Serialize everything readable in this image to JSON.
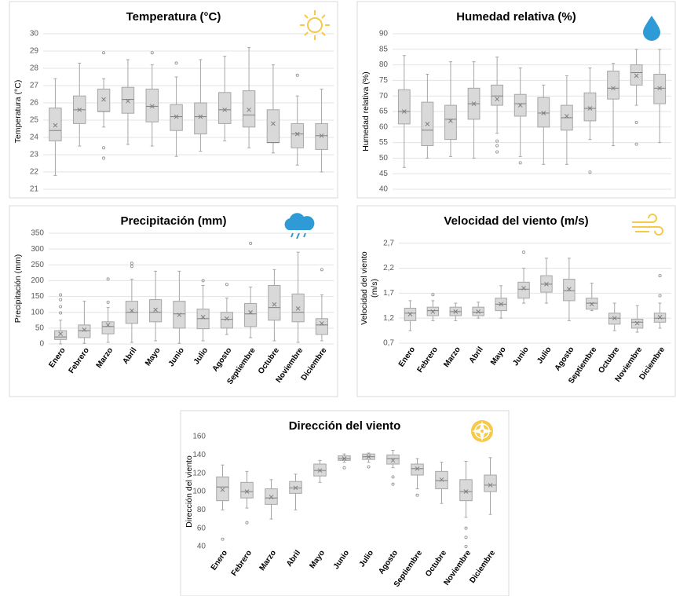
{
  "chart_data": [
    {
      "type": "box",
      "title": "Temperatura (°C)",
      "y_label": [
        "Temperatura (°C)"
      ],
      "ylim": [
        21,
        30
      ],
      "yticks": [
        21,
        22,
        23,
        24,
        25,
        26,
        27,
        28,
        29,
        30
      ],
      "grid": true,
      "color": "#d9d9d9",
      "boxes": [
        {
          "min": 21.8,
          "q1": 23.8,
          "median": 24.4,
          "q3": 25.7,
          "max": 27.4,
          "mean": 24.7,
          "outliers": []
        },
        {
          "min": 23.5,
          "q1": 24.8,
          "median": 25.6,
          "q3": 26.4,
          "max": 28.3,
          "mean": 25.6,
          "outliers": []
        },
        {
          "min": 24.6,
          "q1": 25.5,
          "median": 25.5,
          "q3": 26.8,
          "max": 27.4,
          "mean": 26.2,
          "outliers": [
            28.9,
            23.4,
            22.8
          ]
        },
        {
          "min": 23.6,
          "q1": 25.4,
          "median": 26.2,
          "q3": 26.9,
          "max": 28.5,
          "mean": 26.1,
          "outliers": []
        },
        {
          "min": 23.5,
          "q1": 24.9,
          "median": 25.8,
          "q3": 26.8,
          "max": 28.2,
          "mean": 25.8,
          "outliers": [
            28.9
          ]
        },
        {
          "min": 22.9,
          "q1": 24.4,
          "median": 25.2,
          "q3": 25.9,
          "max": 27.5,
          "mean": 25.2,
          "outliers": [
            28.3
          ]
        },
        {
          "min": 23.2,
          "q1": 24.2,
          "median": 25.2,
          "q3": 26.0,
          "max": 28.5,
          "mean": 25.2,
          "outliers": []
        },
        {
          "min": 23.8,
          "q1": 24.8,
          "median": 25.6,
          "q3": 26.6,
          "max": 28.7,
          "mean": 25.6,
          "outliers": []
        },
        {
          "min": 23.4,
          "q1": 24.6,
          "median": 25.3,
          "q3": 26.7,
          "max": 29.2,
          "mean": 25.6,
          "outliers": []
        },
        {
          "min": 23.1,
          "q1": 23.7,
          "median": 23.7,
          "q3": 25.6,
          "max": 28.2,
          "mean": 24.8,
          "outliers": []
        },
        {
          "min": 22.4,
          "q1": 23.4,
          "median": 24.2,
          "q3": 24.8,
          "max": 26.4,
          "mean": 24.2,
          "outliers": [
            27.6
          ]
        },
        {
          "min": 22.0,
          "q1": 23.3,
          "median": 24.1,
          "q3": 24.8,
          "max": 26.8,
          "mean": 24.1,
          "outliers": []
        }
      ]
    },
    {
      "type": "box",
      "title": "Humedad relativa (%)",
      "y_label": [
        "Humedad relativa (%)"
      ],
      "ylim": [
        40,
        90
      ],
      "yticks": [
        40,
        45,
        50,
        55,
        60,
        65,
        70,
        75,
        80,
        85,
        90
      ],
      "grid": true,
      "color": "#d9d9d9",
      "boxes": [
        {
          "min": 47,
          "q1": 61,
          "median": 65,
          "q3": 72,
          "max": 83,
          "mean": 65,
          "outliers": []
        },
        {
          "min": 50,
          "q1": 54,
          "median": 59,
          "q3": 68,
          "max": 77,
          "mean": 61,
          "outliers": []
        },
        {
          "min": 50.5,
          "q1": 56,
          "median": 62.5,
          "q3": 67,
          "max": 81,
          "mean": 62,
          "outliers": []
        },
        {
          "min": 50,
          "q1": 62.5,
          "median": 67.5,
          "q3": 72.5,
          "max": 81,
          "mean": 67.5,
          "outliers": []
        },
        {
          "min": 58,
          "q1": 67,
          "median": 70,
          "q3": 73.5,
          "max": 82.5,
          "mean": 69,
          "outliers": [
            55.5,
            54,
            52
          ]
        },
        {
          "min": 50.5,
          "q1": 63.5,
          "median": 67.5,
          "q3": 70.5,
          "max": 79,
          "mean": 67,
          "outliers": [
            48.5
          ]
        },
        {
          "min": 48,
          "q1": 60,
          "median": 64.5,
          "q3": 69.5,
          "max": 73.5,
          "mean": 64.5,
          "outliers": []
        },
        {
          "min": 48,
          "q1": 59,
          "median": 63,
          "q3": 67,
          "max": 76.5,
          "mean": 63.5,
          "outliers": []
        },
        {
          "min": 56,
          "q1": 62,
          "median": 66,
          "q3": 71,
          "max": 79,
          "mean": 66,
          "outliers": [
            45.5
          ]
        },
        {
          "min": 54,
          "q1": 69,
          "median": 72.5,
          "q3": 78,
          "max": 80.5,
          "mean": 72.5,
          "outliers": []
        },
        {
          "min": 67,
          "q1": 73.5,
          "median": 77.5,
          "q3": 80,
          "max": 85,
          "mean": 76.5,
          "outliers": [
            61.5,
            54.5
          ]
        },
        {
          "min": 55,
          "q1": 67.5,
          "median": 72.5,
          "q3": 77,
          "max": 85,
          "mean": 72.5,
          "outliers": []
        }
      ]
    },
    {
      "type": "box",
      "title": "Precipitación (mm)",
      "y_label": [
        "Precipitación (mm)"
      ],
      "ylim": [
        0,
        350
      ],
      "yticks": [
        0,
        50,
        100,
        150,
        200,
        250,
        300,
        350
      ],
      "grid": true,
      "color": "#d9d9d9",
      "categories": [
        "Enero",
        "Febrero",
        "Marzo",
        "Abril",
        "Mayo",
        "Junio",
        "Julio",
        "Agosto",
        "Septiembre",
        "Octubre",
        "Noviembre",
        "Diciembre"
      ],
      "boxes": [
        {
          "min": 0,
          "q1": 14,
          "median": 22,
          "q3": 42,
          "max": 75,
          "mean": 32,
          "outliers": [
            155,
            140,
            118,
            98
          ]
        },
        {
          "min": 2,
          "q1": 20,
          "median": 42,
          "q3": 60,
          "max": 135,
          "mean": 45,
          "outliers": []
        },
        {
          "min": 5,
          "q1": 32,
          "median": 55,
          "q3": 70,
          "max": 115,
          "mean": 60,
          "outliers": [
            205,
            132
          ]
        },
        {
          "min": 5,
          "q1": 65,
          "median": 100,
          "q3": 135,
          "max": 205,
          "mean": 105,
          "outliers": [
            255,
            245
          ]
        },
        {
          "min": 10,
          "q1": 70,
          "median": 100,
          "q3": 140,
          "max": 230,
          "mean": 108,
          "outliers": []
        },
        {
          "min": 2,
          "q1": 50,
          "median": 95,
          "q3": 135,
          "max": 230,
          "mean": 92,
          "outliers": []
        },
        {
          "min": 10,
          "q1": 48,
          "median": 80,
          "q3": 110,
          "max": 185,
          "mean": 85,
          "outliers": [
            200
          ]
        },
        {
          "min": 30,
          "q1": 50,
          "median": 78,
          "q3": 100,
          "max": 145,
          "mean": 80,
          "outliers": [
            188
          ]
        },
        {
          "min": 20,
          "q1": 55,
          "median": 95,
          "q3": 128,
          "max": 180,
          "mean": 100,
          "outliers": [
            318
          ]
        },
        {
          "min": 10,
          "q1": 75,
          "median": 115,
          "q3": 185,
          "max": 235,
          "mean": 125,
          "outliers": []
        },
        {
          "min": 5,
          "q1": 70,
          "median": 100,
          "q3": 158,
          "max": 290,
          "mean": 112,
          "outliers": []
        },
        {
          "min": 10,
          "q1": 30,
          "median": 60,
          "q3": 80,
          "max": 155,
          "mean": 65,
          "outliers": [
            235
          ]
        }
      ]
    },
    {
      "type": "box",
      "title": "Velocidad del viento (m/s)",
      "y_label": [
        "Velocidad del viento",
        "(m/s)"
      ],
      "ylim": [
        0.7,
        2.9
      ],
      "yticks": [
        {
          "value": 0.7,
          "label": "0,7"
        },
        {
          "value": 1.2,
          "label": "1,2"
        },
        {
          "value": 1.7,
          "label": "1,7"
        },
        {
          "value": 2.2,
          "label": "2,2"
        },
        {
          "value": 2.7,
          "label": "2,7"
        }
      ],
      "grid": true,
      "color": "#d9d9d9",
      "categories": [
        "Enero",
        "Febrero",
        "Marzo",
        "Abril",
        "Mayo",
        "Junio",
        "Julio",
        "Agosto",
        "Septiembre",
        "Octubre",
        "Noviembre",
        "Diciembre"
      ],
      "boxes": [
        {
          "min": 0.95,
          "q1": 1.15,
          "median": 1.3,
          "q3": 1.4,
          "max": 1.55,
          "mean": 1.28,
          "outliers": []
        },
        {
          "min": 1.15,
          "q1": 1.25,
          "median": 1.35,
          "q3": 1.42,
          "max": 1.55,
          "mean": 1.33,
          "outliers": [
            1.67
          ]
        },
        {
          "min": 1.15,
          "q1": 1.25,
          "median": 1.33,
          "q3": 1.42,
          "max": 1.5,
          "mean": 1.33,
          "outliers": []
        },
        {
          "min": 1.2,
          "q1": 1.25,
          "median": 1.32,
          "q3": 1.42,
          "max": 1.52,
          "mean": 1.33,
          "outliers": []
        },
        {
          "min": 1.2,
          "q1": 1.35,
          "median": 1.48,
          "q3": 1.6,
          "max": 1.85,
          "mean": 1.48,
          "outliers": []
        },
        {
          "min": 1.5,
          "q1": 1.6,
          "median": 1.78,
          "q3": 1.92,
          "max": 2.2,
          "mean": 1.8,
          "outliers": [
            2.52
          ]
        },
        {
          "min": 1.5,
          "q1": 1.72,
          "median": 1.88,
          "q3": 2.05,
          "max": 2.4,
          "mean": 1.88,
          "outliers": []
        },
        {
          "min": 1.15,
          "q1": 1.55,
          "median": 1.75,
          "q3": 1.98,
          "max": 2.4,
          "mean": 1.78,
          "outliers": []
        },
        {
          "min": 1.35,
          "q1": 1.38,
          "median": 1.5,
          "q3": 1.6,
          "max": 1.9,
          "mean": 1.48,
          "outliers": []
        },
        {
          "min": 0.95,
          "q1": 1.08,
          "median": 1.2,
          "q3": 1.3,
          "max": 1.5,
          "mean": 1.2,
          "outliers": []
        },
        {
          "min": 0.92,
          "q1": 1.0,
          "median": 1.12,
          "q3": 1.18,
          "max": 1.45,
          "mean": 1.1,
          "outliers": []
        },
        {
          "min": 1.0,
          "q1": 1.12,
          "median": 1.2,
          "q3": 1.3,
          "max": 1.5,
          "mean": 1.22,
          "outliers": [
            2.05,
            1.65
          ]
        }
      ]
    },
    {
      "type": "box",
      "title": "Dirección del viento",
      "y_label": [
        "Dirección del viento"
      ],
      "ylim": [
        40,
        160
      ],
      "yticks": [
        40,
        60,
        80,
        100,
        120,
        140,
        160
      ],
      "grid": false,
      "color": "#d9d9d9",
      "categories": [
        "Enero",
        "Febrero",
        "Marzo",
        "Abril",
        "Mayo",
        "Junio",
        "Julio",
        "Agosto",
        "Septiembre",
        "Octubre",
        "Noviembre",
        "Diciembre"
      ],
      "boxes": [
        {
          "min": 80,
          "q1": 90,
          "median": 105,
          "q3": 116,
          "max": 129,
          "mean": 102,
          "outliers": [
            48
          ]
        },
        {
          "min": 82,
          "q1": 93,
          "median": 100,
          "q3": 110,
          "max": 122,
          "mean": 100,
          "outliers": [
            66
          ]
        },
        {
          "min": 70,
          "q1": 86,
          "median": 93,
          "q3": 103,
          "max": 113,
          "mean": 94,
          "outliers": []
        },
        {
          "min": 80,
          "q1": 98,
          "median": 104,
          "q3": 111,
          "max": 119,
          "mean": 104,
          "outliers": []
        },
        {
          "min": 110,
          "q1": 117,
          "median": 123,
          "q3": 130,
          "max": 134,
          "mean": 123,
          "outliers": []
        },
        {
          "min": 132,
          "q1": 134,
          "median": 136,
          "q3": 139,
          "max": 141,
          "mean": 136,
          "outliers": [
            126
          ]
        },
        {
          "min": 132,
          "q1": 135,
          "median": 138,
          "q3": 141,
          "max": 142,
          "mean": 138,
          "outliers": [
            127
          ]
        },
        {
          "min": 126,
          "q1": 130,
          "median": 136,
          "q3": 140,
          "max": 145,
          "mean": 134,
          "outliers": [
            116,
            108
          ]
        },
        {
          "min": 103,
          "q1": 118,
          "median": 125,
          "q3": 130,
          "max": 136,
          "mean": 125,
          "outliers": [
            96
          ]
        },
        {
          "min": 87,
          "q1": 103,
          "median": 112,
          "q3": 122,
          "max": 132,
          "mean": 113,
          "outliers": []
        },
        {
          "min": 72,
          "q1": 90,
          "median": 100,
          "q3": 113,
          "max": 133,
          "mean": 100,
          "outliers": [
            60,
            50,
            40
          ]
        },
        {
          "min": 75,
          "q1": 100,
          "median": 107,
          "q3": 118,
          "max": 137,
          "mean": 107,
          "outliers": []
        }
      ]
    }
  ]
}
